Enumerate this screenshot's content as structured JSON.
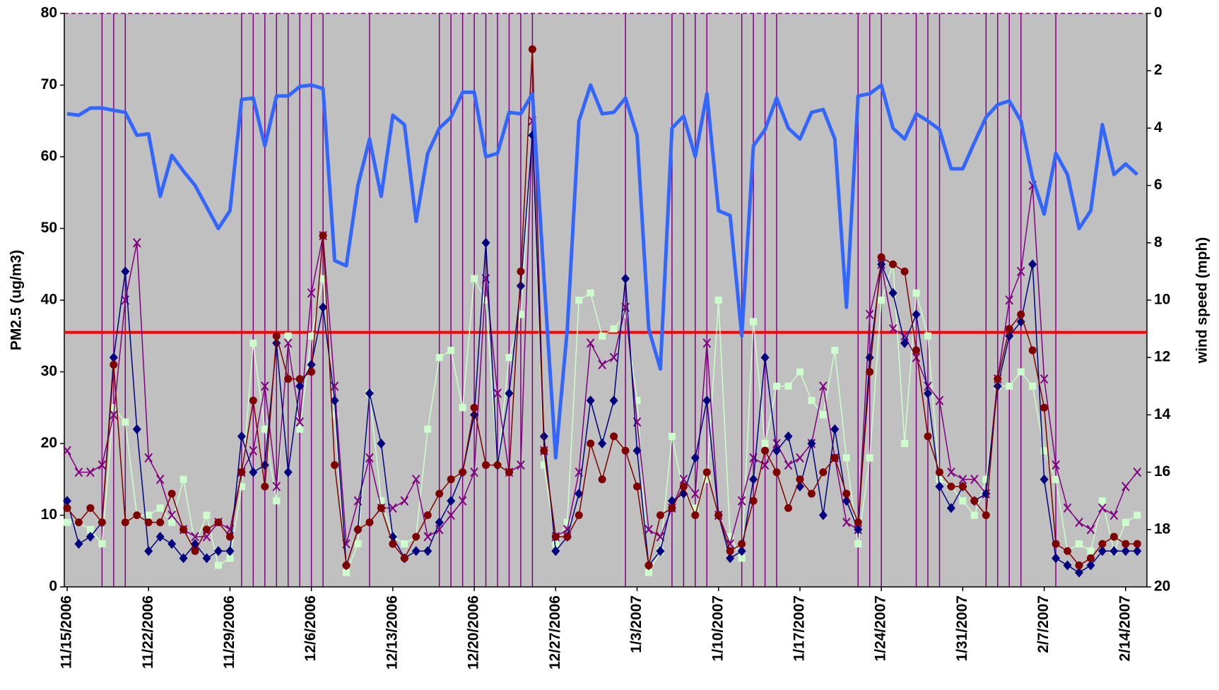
{
  "chart_data": {
    "type": "line",
    "y_label": "PM2.5 (ug/m3)",
    "y2_label": "wind speed (mph)",
    "categories": [
      "11/15/2006",
      null,
      null,
      null,
      null,
      null,
      null,
      "11/22/2006",
      null,
      null,
      null,
      null,
      null,
      null,
      "11/29/2006",
      null,
      null,
      null,
      null,
      null,
      null,
      "12/6/2006",
      null,
      null,
      null,
      null,
      null,
      null,
      "12/13/2006",
      null,
      null,
      null,
      null,
      null,
      null,
      "12/20/2006",
      null,
      null,
      null,
      null,
      null,
      null,
      "12/27/2006",
      null,
      null,
      null,
      null,
      null,
      null,
      "1/3/2007",
      null,
      null,
      null,
      null,
      null,
      null,
      "1/10/2007",
      null,
      null,
      null,
      null,
      null,
      null,
      "1/17/2007",
      null,
      null,
      null,
      null,
      null,
      null,
      "1/24/2007",
      null,
      null,
      null,
      null,
      null,
      null,
      "1/31/2007",
      null,
      null,
      null,
      null,
      null,
      null,
      "2/7/2007",
      null,
      null,
      null,
      null,
      null,
      null,
      "2/14/2007",
      null
    ],
    "ylim": [
      0,
      80
    ],
    "yticks": [
      0,
      10,
      20,
      30,
      40,
      50,
      60,
      70,
      80
    ],
    "y2lim": [
      0,
      20
    ],
    "y2ticks": [
      0,
      2,
      4,
      6,
      8,
      10,
      12,
      14,
      16,
      18,
      20
    ],
    "y2_inverted": true,
    "background": "#c0c0c0",
    "threshold": {
      "value": 35.5,
      "color": "#ff0000"
    },
    "highlight_days": {
      "color": "#800080",
      "indices": [
        3,
        4,
        5,
        15,
        16,
        17,
        18,
        19,
        20,
        21,
        22,
        26,
        32,
        33,
        34,
        35,
        36,
        37,
        38,
        39,
        40,
        48,
        52,
        53,
        54,
        55,
        58,
        59,
        60,
        61,
        68,
        69,
        70,
        73,
        74,
        75,
        79,
        80,
        81,
        82,
        85
      ]
    },
    "series": [
      {
        "color": "#ccffcc",
        "marker": "square",
        "values": [
          9,
          9,
          8,
          6,
          25,
          23,
          10,
          10,
          11,
          9,
          15,
          6,
          10,
          3,
          4,
          14,
          34,
          22,
          12,
          35,
          22,
          35,
          43,
          24,
          2,
          6,
          27,
          12,
          7,
          6,
          7,
          22,
          32,
          33,
          25,
          43,
          40,
          17,
          32,
          38,
          63,
          17,
          6,
          9,
          40,
          41,
          35,
          36,
          38,
          26,
          2,
          5,
          21,
          13,
          11,
          15,
          40,
          7,
          4,
          37,
          20,
          28,
          28,
          30,
          26,
          24,
          33,
          18,
          6,
          18,
          40,
          45,
          20,
          41,
          35,
          15,
          14,
          12,
          10,
          15,
          28,
          28,
          30,
          28,
          19,
          15,
          5,
          6,
          5,
          12,
          5,
          9,
          10
        ]
      },
      {
        "color": "#800080",
        "marker": "x",
        "values": [
          19,
          16,
          16,
          17,
          24,
          40,
          48,
          18,
          15,
          10,
          8,
          7,
          7,
          9,
          8,
          16,
          19,
          28,
          14,
          34,
          23,
          41,
          49,
          28,
          6,
          12,
          18,
          11,
          11,
          12,
          15,
          7,
          8,
          10,
          12,
          16,
          43,
          27,
          16,
          17,
          65,
          19,
          7,
          8,
          16,
          34,
          31,
          32,
          39,
          23,
          8,
          7,
          11,
          15,
          13,
          34,
          10,
          6,
          12,
          18,
          17,
          20,
          17,
          18,
          20,
          28,
          18,
          9,
          8,
          38,
          45,
          36,
          35,
          32,
          28,
          26,
          16,
          15,
          15,
          13,
          29,
          40,
          44,
          56,
          29,
          17,
          11,
          9,
          8,
          11,
          10,
          14,
          16
        ]
      },
      {
        "color": "#000080",
        "marker": "diamond",
        "values": [
          12,
          6,
          7,
          9,
          32,
          44,
          22,
          5,
          7,
          6,
          4,
          6,
          4,
          5,
          5,
          21,
          16,
          17,
          34,
          16,
          28,
          31,
          39,
          26,
          3,
          8,
          27,
          20,
          7,
          4,
          5,
          5,
          9,
          12,
          16,
          24,
          48,
          17,
          27,
          42,
          63,
          21,
          5,
          7,
          13,
          26,
          20,
          26,
          43,
          19,
          3,
          5,
          12,
          13,
          18,
          26,
          10,
          4,
          5,
          15,
          32,
          19,
          21,
          14,
          20,
          10,
          22,
          12,
          8,
          32,
          45,
          41,
          34,
          38,
          27,
          14,
          11,
          14,
          12,
          13,
          28,
          35,
          37,
          45,
          15,
          4,
          3,
          2,
          3,
          5,
          5,
          5,
          5
        ]
      },
      {
        "color": "#800000",
        "marker": "circle",
        "values": [
          11,
          9,
          11,
          9,
          31,
          9,
          10,
          9,
          9,
          13,
          8,
          5,
          8,
          9,
          7,
          16,
          26,
          14,
          35,
          29,
          29,
          30,
          49,
          17,
          3,
          8,
          9,
          11,
          6,
          4,
          7,
          10,
          13,
          15,
          16,
          25,
          17,
          17,
          16,
          44,
          75,
          19,
          7,
          7,
          10,
          20,
          15,
          21,
          19,
          14,
          3,
          10,
          11,
          14,
          10,
          16,
          10,
          5,
          6,
          12,
          19,
          16,
          11,
          15,
          13,
          16,
          18,
          13,
          9,
          30,
          46,
          45,
          44,
          33,
          21,
          16,
          14,
          14,
          12,
          10,
          29,
          36,
          38,
          33,
          25,
          6,
          5,
          3,
          4,
          6,
          7,
          6,
          6
        ]
      },
      {
        "color": "#3366ff",
        "axis": "y2",
        "values": [
          3.5,
          3.55,
          3.3,
          3.3,
          3.38,
          3.45,
          4.25,
          4.2,
          6.38,
          4.95,
          5.5,
          6,
          6.75,
          7.5,
          6.88,
          3,
          2.95,
          4.62,
          2.88,
          2.88,
          2.55,
          2.5,
          2.62,
          8.62,
          8.8,
          6,
          4.38,
          6.38,
          3.55,
          3.88,
          7.25,
          4.88,
          4,
          3.62,
          2.75,
          2.75,
          5,
          4.88,
          3.45,
          3.5,
          2.8,
          9.25,
          15.5,
          11,
          3.75,
          2.5,
          3.5,
          3.45,
          2.95,
          4.25,
          11,
          12.4,
          4,
          3.58,
          5,
          2.8,
          6.88,
          7.05,
          11.25,
          4.62,
          4.05,
          2.95,
          4,
          4.38,
          3.45,
          3.35,
          4.38,
          10.25,
          2.88,
          2.8,
          2.5,
          4,
          4.38,
          3.5,
          3.75,
          4.05,
          5.42,
          5.42,
          4.5,
          3.62,
          3.18,
          3.05,
          3.75,
          5.75,
          7,
          4.88,
          5.62,
          7.5,
          6.88,
          3.88,
          5.62,
          5.25,
          5.62
        ]
      }
    ]
  }
}
